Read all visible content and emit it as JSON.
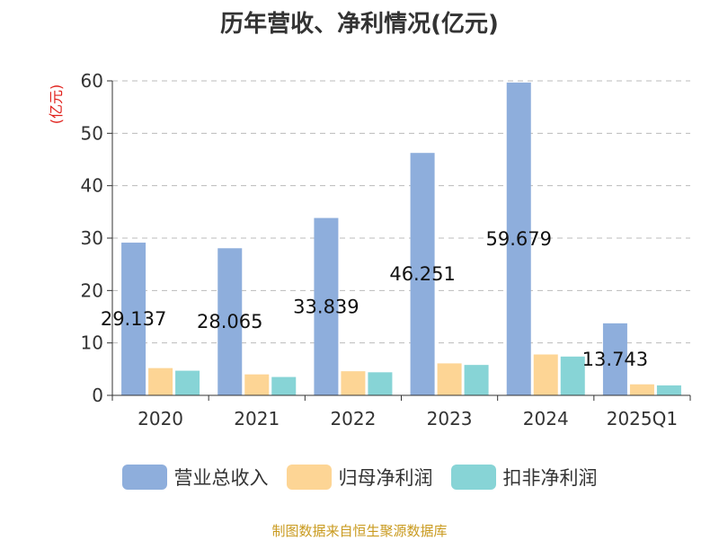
{
  "chart_data": {
    "type": "bar",
    "title": "历年营收、净利情况(亿元)",
    "ylabel": "(亿元)",
    "xlabel": "",
    "categories": [
      "2020",
      "2021",
      "2022",
      "2023",
      "2024",
      "2025Q1"
    ],
    "series": [
      {
        "name": "营业总收入",
        "color": "#8eaedc",
        "values": [
          29.137,
          28.065,
          33.839,
          46.251,
          59.679,
          13.743
        ],
        "labels": [
          "29.137",
          "28.065",
          "33.839",
          "46.251",
          "59.679",
          "13.743"
        ]
      },
      {
        "name": "归母净利润",
        "color": "#fdd595",
        "values": [
          5.2,
          4.0,
          4.6,
          6.1,
          7.8,
          2.1
        ]
      },
      {
        "name": "扣非净利润",
        "color": "#87d4d6",
        "values": [
          4.7,
          3.5,
          4.4,
          5.8,
          7.4,
          1.9
        ]
      }
    ],
    "yticks": [
      "0",
      "10",
      "20",
      "30",
      "40",
      "50",
      "60"
    ],
    "ylim": [
      0,
      60
    ],
    "grid": true,
    "legend": "bottom"
  },
  "source_note": "制图数据来自恒生聚源数据库"
}
